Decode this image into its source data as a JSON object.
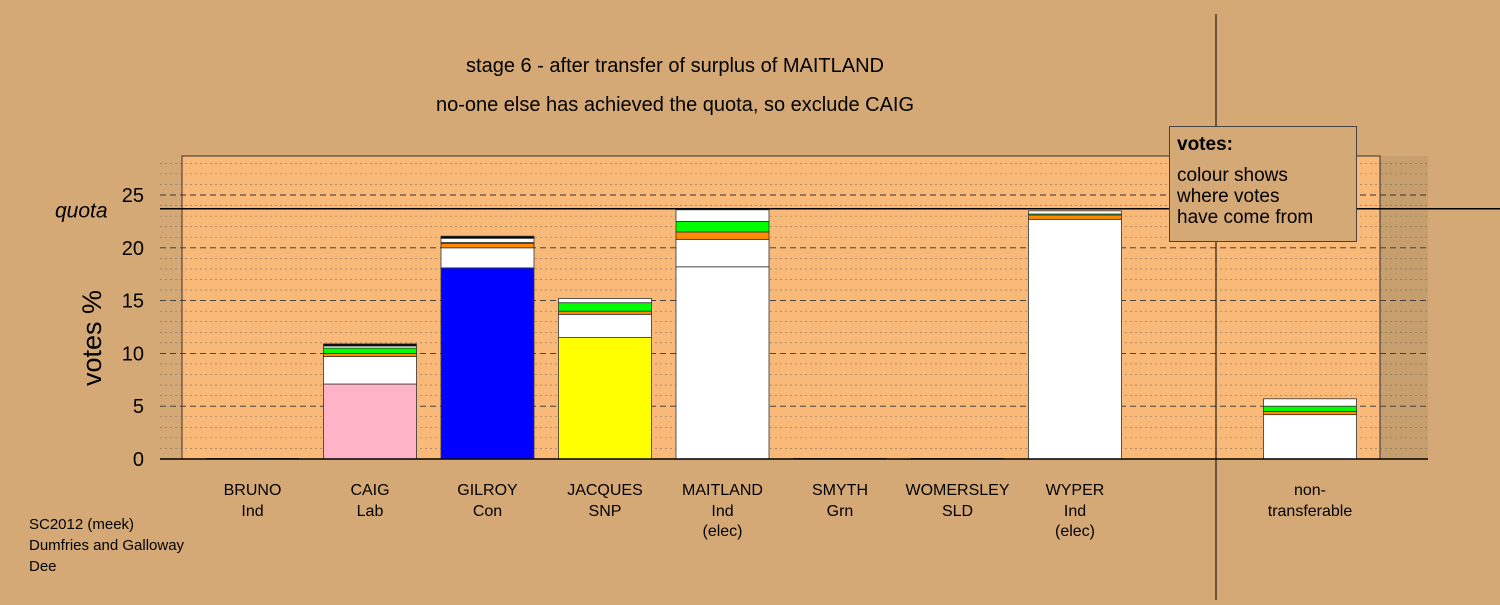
{
  "chart_data": {
    "type": "bar",
    "title": "stage 6 - after transfer of surplus of MAITLAND",
    "subtitle": "no-one else has achieved the quota, so exclude CAIG",
    "ylabel": "votes %",
    "ylim": [
      0,
      29
    ],
    "yticks": [
      0,
      5,
      10,
      15,
      20,
      25
    ],
    "quota": 23.7,
    "quota_label": "quota",
    "categories": [
      {
        "name": "BRUNO",
        "party": "Ind",
        "note": ""
      },
      {
        "name": "CAIG",
        "party": "Lab",
        "note": ""
      },
      {
        "name": "GILROY",
        "party": "Con",
        "note": ""
      },
      {
        "name": "JACQUES",
        "party": "SNP",
        "note": ""
      },
      {
        "name": "MAITLAND",
        "party": "Ind",
        "note": "(elec)"
      },
      {
        "name": "SMYTH",
        "party": "Grn",
        "note": ""
      },
      {
        "name": "WOMERSLEY",
        "party": "SLD",
        "note": ""
      },
      {
        "name": "WYPER",
        "party": "Ind",
        "note": "(elec)"
      },
      {
        "name": "non-",
        "party": "transferable",
        "note": ""
      }
    ],
    "stacks": [
      [],
      [
        {
          "v": 7.1,
          "color": "#ffb3c6"
        },
        {
          "v": 2.6,
          "color": "#ffffff"
        },
        {
          "v": 0.3,
          "color": "#ff8c00"
        },
        {
          "v": 0.5,
          "color": "#00ff00"
        },
        {
          "v": 0.2,
          "color": "#ffffff"
        },
        {
          "v": 0.2,
          "color": "#000000"
        }
      ],
      [
        {
          "v": 18.1,
          "color": "#0000ff"
        },
        {
          "v": 1.9,
          "color": "#ffffff"
        },
        {
          "v": 0.4,
          "color": "#ff8c00"
        },
        {
          "v": 0.1,
          "color": "#00ff00"
        },
        {
          "v": 0.4,
          "color": "#ffffff"
        },
        {
          "v": 0.2,
          "color": "#000000"
        }
      ],
      [
        {
          "v": 11.5,
          "color": "#ffff00"
        },
        {
          "v": 2.2,
          "color": "#ffffff"
        },
        {
          "v": 0.3,
          "color": "#ff8c00"
        },
        {
          "v": 0.8,
          "color": "#00ff00"
        },
        {
          "v": 0.4,
          "color": "#ffffff"
        }
      ],
      [
        {
          "v": 18.2,
          "color": "#ffffff"
        },
        {
          "v": 2.6,
          "color": "#ffffff"
        },
        {
          "v": 0.7,
          "color": "#ff8c00"
        },
        {
          "v": 1.0,
          "color": "#00ff00"
        },
        {
          "v": 1.1,
          "color": "#ffffff"
        }
      ],
      [],
      [],
      [
        {
          "v": 22.7,
          "color": "#ffffff"
        },
        {
          "v": 0.4,
          "color": "#ff8c00"
        },
        {
          "v": 0.1,
          "color": "#00ff00"
        },
        {
          "v": 0.3,
          "color": "#ffffff"
        }
      ],
      [
        {
          "v": 4.2,
          "color": "#ffffff"
        },
        {
          "v": 0.3,
          "color": "#ff8c00"
        },
        {
          "v": 0.5,
          "color": "#00ff00"
        },
        {
          "v": 0.7,
          "color": "#ffffff"
        }
      ]
    ],
    "grid": true,
    "legend": {
      "position": "top-right",
      "title": "votes:",
      "lines": [
        "colour shows",
        "where votes",
        "have come from"
      ]
    },
    "colors": {
      "background": "#d4a976",
      "plot_area": "#f9b978"
    }
  },
  "footer": {
    "line1": "SC2012 (meek)",
    "line2": "Dumfries and Galloway",
    "line3": "Dee"
  }
}
